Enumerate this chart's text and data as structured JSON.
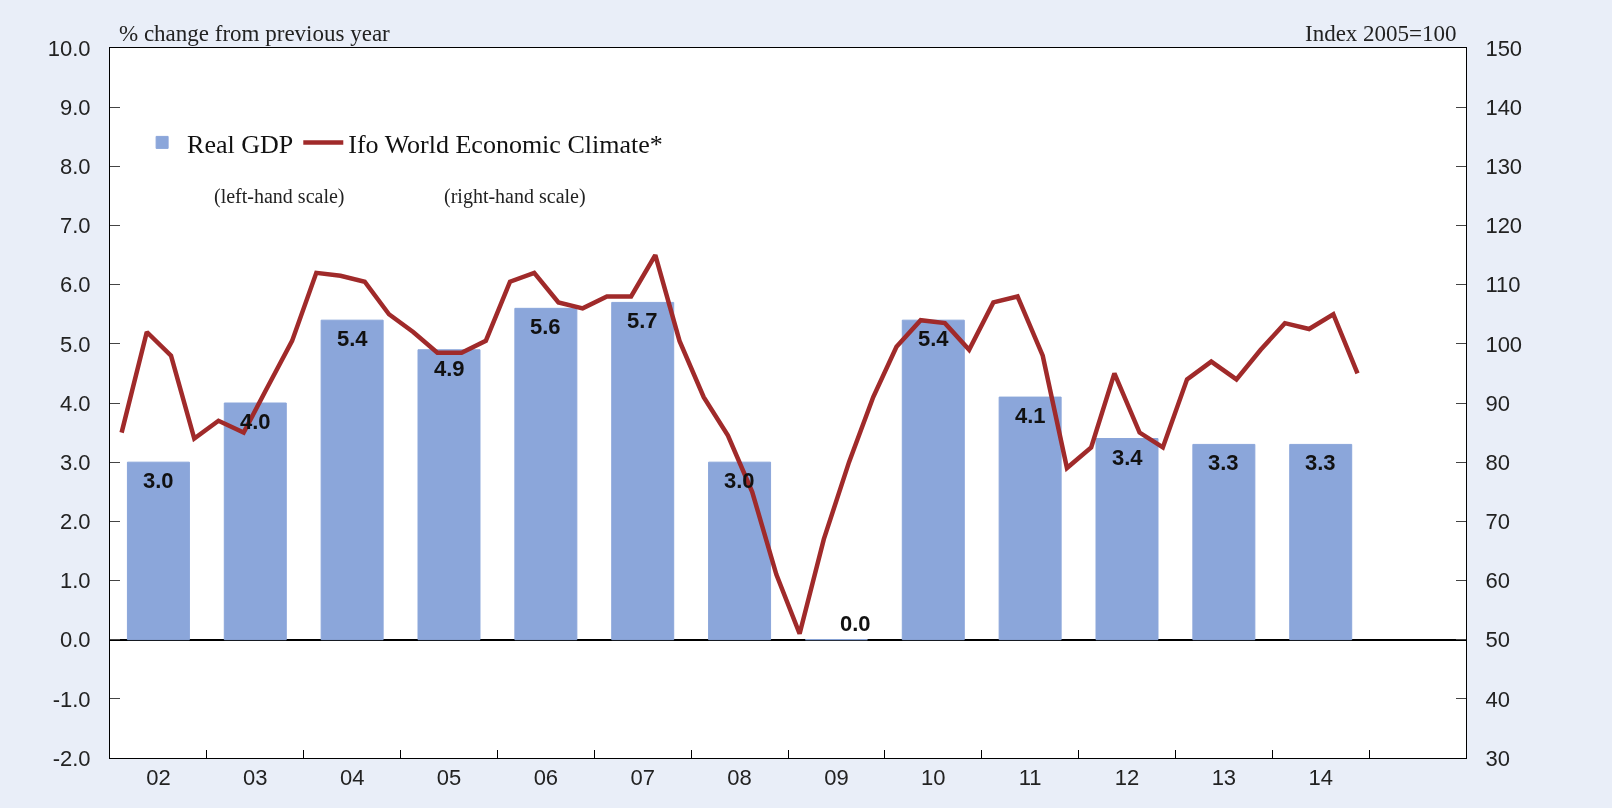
{
  "chart_data": {
    "type": "bar",
    "ylabel": "% change from previous year",
    "y2label": "Index 2005=100",
    "x": [
      2002,
      2003,
      2004,
      2005,
      2006,
      2007,
      2008,
      2009,
      2010,
      2011,
      2012,
      2013,
      2014
    ],
    "series": [
      {
        "name": "Real GDP",
        "color": "#8ba6da",
        "values": [
          3.0,
          4.0,
          5.4,
          4.9,
          5.6,
          5.7,
          3.0,
          0.0,
          5.4,
          4.1,
          3.4,
          3.3,
          3.3
        ],
        "value_labels": [
          "3.0",
          "4.0",
          "5.4",
          "4.9",
          "5.6",
          "5.7",
          "3.0",
          "0.0",
          "5.4",
          "4.1",
          "3.4",
          "3.3",
          "3.3"
        ]
      },
      {
        "name": "Ifo World Economic Climate*",
        "type": "line",
        "axis": "y2",
        "color": "#a02a2a",
        "x": [
          2001.62,
          2001.88,
          2002.13,
          2002.37,
          2002.62,
          2002.88,
          2003.12,
          2003.38,
          2003.63,
          2003.88,
          2004.13,
          2004.38,
          2004.63,
          2004.88,
          2005.13,
          2005.38,
          2005.63,
          2005.88,
          2006.13,
          2006.38,
          2006.63,
          2006.88,
          2007.13,
          2007.38,
          2007.63,
          2007.88,
          2008.13,
          2008.38,
          2008.62,
          2008.87,
          2009.13,
          2009.38,
          2009.62,
          2009.87,
          2010.12,
          2010.37,
          2010.62,
          2010.87,
          2011.13,
          2011.38,
          2011.63,
          2011.87,
          2012.13,
          2012.37,
          2012.62,
          2012.87,
          2013.13,
          2013.38,
          2013.63,
          2013.88,
          2014.13,
          2014.38
        ],
        "values": [
          85,
          102,
          98,
          84,
          87,
          85,
          92.5,
          100.5,
          112,
          111.5,
          110.5,
          105,
          102,
          98.5,
          98.5,
          100.5,
          110.5,
          112,
          107,
          106,
          108,
          108,
          115,
          100.5,
          91,
          84.5,
          75,
          61,
          51,
          67,
          80,
          91,
          99.5,
          104,
          103.5,
          99,
          107,
          108,
          98,
          79,
          82.5,
          95,
          85,
          82.5,
          94,
          97,
          94,
          99,
          103.5,
          102.5,
          105,
          95
        ]
      }
    ],
    "annotations": [
      "(left-hand scale)",
      "(right-hand scale)"
    ],
    "xlim": [
      2001.5,
      2015.5
    ],
    "xticks": [
      {
        "value": 2001.5,
        "label": null
      },
      {
        "value": 2002,
        "label": "02"
      },
      {
        "value": 2002.5,
        "label": null
      },
      {
        "value": 2003,
        "label": "03"
      },
      {
        "value": 2003.5,
        "label": null
      },
      {
        "value": 2004,
        "label": "04"
      },
      {
        "value": 2004.5,
        "label": null
      },
      {
        "value": 2005,
        "label": "05"
      },
      {
        "value": 2005.5,
        "label": null
      },
      {
        "value": 2006,
        "label": "06"
      },
      {
        "value": 2006.5,
        "label": null
      },
      {
        "value": 2007,
        "label": "07"
      },
      {
        "value": 2007.5,
        "label": null
      },
      {
        "value": 2008,
        "label": "08"
      },
      {
        "value": 2008.5,
        "label": null
      },
      {
        "value": 2009,
        "label": "09"
      },
      {
        "value": 2009.5,
        "label": null
      },
      {
        "value": 2010,
        "label": "10"
      },
      {
        "value": 2010.5,
        "label": null
      },
      {
        "value": 2011,
        "label": "11"
      },
      {
        "value": 2011.5,
        "label": null
      },
      {
        "value": 2012,
        "label": "12"
      },
      {
        "value": 2012.5,
        "label": null
      },
      {
        "value": 2013,
        "label": "13"
      },
      {
        "value": 2013.5,
        "label": null
      },
      {
        "value": 2014,
        "label": "14"
      },
      {
        "value": 2014.5,
        "label": null
      }
    ],
    "ylim": [
      -2,
      10
    ],
    "yticks": [
      {
        "value": -2,
        "label": "-2.0"
      },
      {
        "value": -1,
        "label": "-1.0"
      },
      {
        "value": 0,
        "label": "0.0"
      },
      {
        "value": 1,
        "label": "1.0"
      },
      {
        "value": 2,
        "label": "2.0"
      },
      {
        "value": 3,
        "label": "3.0"
      },
      {
        "value": 4,
        "label": "4.0"
      },
      {
        "value": 5,
        "label": "5.0"
      },
      {
        "value": 6,
        "label": "6.0"
      },
      {
        "value": 7,
        "label": "7.0"
      },
      {
        "value": 8,
        "label": "8.0"
      },
      {
        "value": 9,
        "label": "9.0"
      },
      {
        "value": 10,
        "label": "10.0"
      }
    ],
    "y2lim": [
      30,
      150
    ],
    "y2ticks": [
      30,
      40,
      50,
      60,
      70,
      80,
      90,
      100,
      110,
      120,
      130,
      140,
      150
    ],
    "legend": "top left"
  }
}
